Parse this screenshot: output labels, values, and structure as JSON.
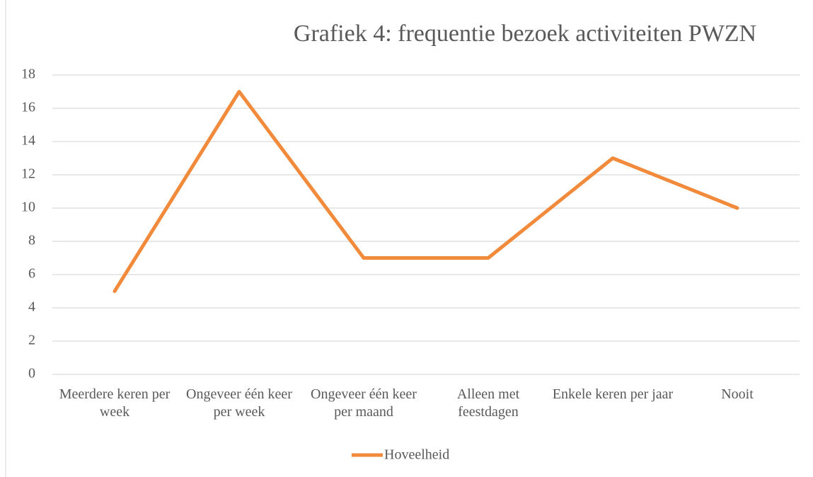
{
  "chart_data": {
    "type": "line",
    "title": "Grafiek 4: frequentie bezoek activiteiten PWZN",
    "categories": [
      "Meerdere keren per week",
      "Ongeveer één keer per week",
      "Ongeveer één keer per maand",
      "Alleen met feestdagen",
      "Enkele keren per jaar",
      "Nooit"
    ],
    "series": [
      {
        "name": "Hoveelheid",
        "color": "#f28a3c",
        "values": [
          5,
          17,
          7,
          7,
          13,
          10
        ]
      }
    ],
    "ylim": [
      0,
      18
    ],
    "yticks": [
      0,
      2,
      4,
      6,
      8,
      10,
      12,
      14,
      16,
      18
    ],
    "grid": true,
    "legend": "bottom"
  }
}
